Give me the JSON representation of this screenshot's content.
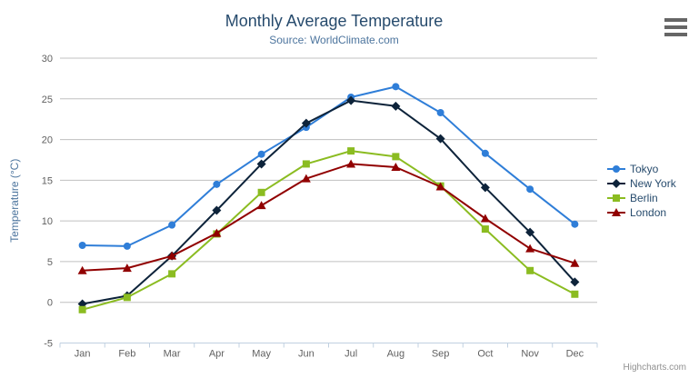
{
  "header": {
    "title": "Monthly Average Temperature",
    "subtitle": "Source: WorldClimate.com"
  },
  "credits_label": "Highcharts.com",
  "context_menu_icon": "hamburger-icon",
  "colors": {
    "title": "#274b6d",
    "subtitle": "#4d759e",
    "axis_labels": "#606060",
    "axis_title": "#4d759e",
    "grid_line": "#C0C0C0",
    "axis_line": "#C0D0E0",
    "legend_text": "#274b6d",
    "credits": "#909090",
    "menu_icon": "#666666"
  },
  "chart_data": {
    "type": "line",
    "title": "Monthly Average Temperature",
    "subtitle": "Source: WorldClimate.com",
    "categories": [
      "Jan",
      "Feb",
      "Mar",
      "Apr",
      "May",
      "Jun",
      "Jul",
      "Aug",
      "Sep",
      "Oct",
      "Nov",
      "Dec"
    ],
    "xlabel": "",
    "ylabel": "Temperature (°C)",
    "ylim": [
      -5,
      30
    ],
    "ytick_interval": 5,
    "grid": true,
    "legend_position": "right",
    "series": [
      {
        "name": "Tokyo",
        "color": "#2f7ed8",
        "marker": "circle",
        "values": [
          7.0,
          6.9,
          9.5,
          14.5,
          18.2,
          21.5,
          25.2,
          26.5,
          23.3,
          18.3,
          13.9,
          9.6
        ]
      },
      {
        "name": "New York",
        "color": "#0d233a",
        "marker": "diamond",
        "values": [
          -0.2,
          0.8,
          5.7,
          11.3,
          17.0,
          22.0,
          24.8,
          24.1,
          20.1,
          14.1,
          8.6,
          2.5
        ]
      },
      {
        "name": "Berlin",
        "color": "#8bbc21",
        "marker": "square",
        "values": [
          -0.9,
          0.6,
          3.5,
          8.4,
          13.5,
          17.0,
          18.6,
          17.9,
          14.3,
          9.0,
          3.9,
          1.0
        ]
      },
      {
        "name": "London",
        "color": "#910000",
        "marker": "triangle",
        "values": [
          3.9,
          4.2,
          5.7,
          8.5,
          11.9,
          15.2,
          17.0,
          16.6,
          14.2,
          10.3,
          6.6,
          4.8
        ]
      }
    ]
  }
}
